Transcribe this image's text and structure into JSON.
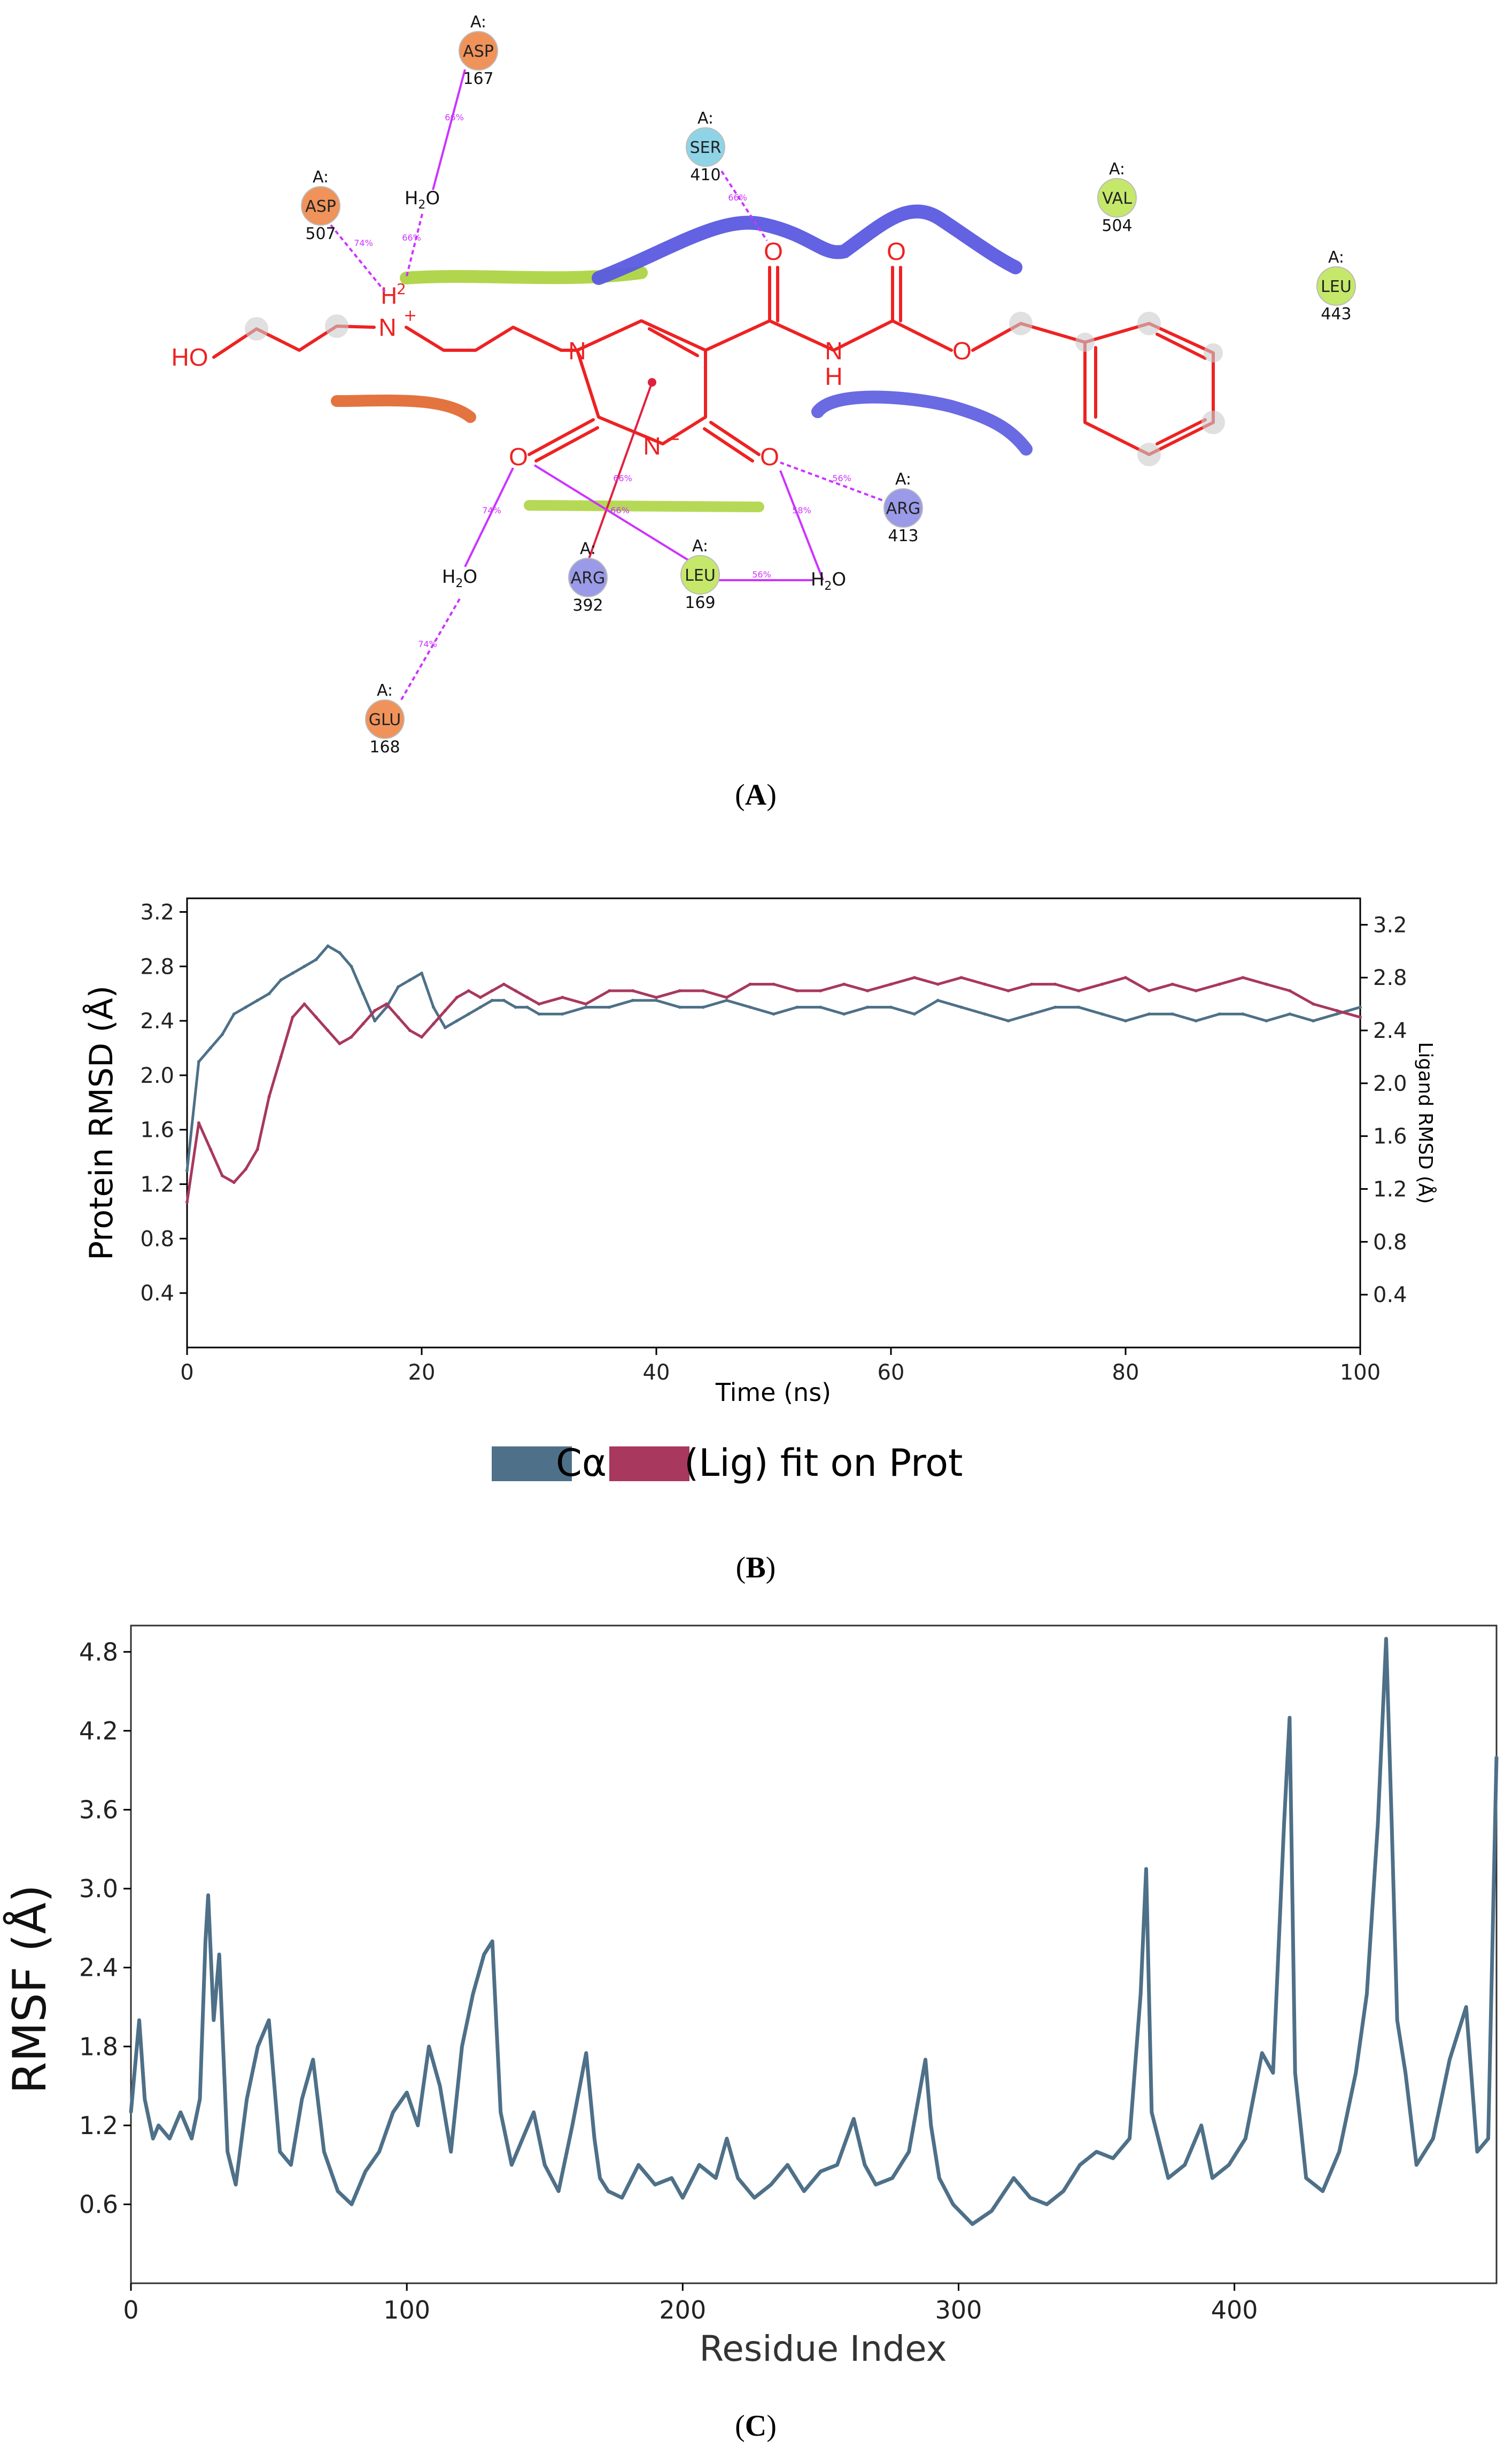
{
  "panel_a": {
    "caption_letter": "A",
    "molecule": {
      "ho": "HO",
      "nplus": "N",
      "plus_sign": "+",
      "h2_label": "H",
      "h2_sub": "2",
      "n_ring": "N",
      "n_minus": "N",
      "minus_sign": "−",
      "o_top_amide": "O",
      "o_top_carb": "O",
      "o_ester": "O",
      "nh_n": "N",
      "nh_h": "H",
      "o_left": "O",
      "o_right": "O"
    },
    "water_label_h": "H",
    "water_label_sub": "2",
    "water_label_o": "O",
    "chain_prefix": "A:",
    "residues": [
      {
        "id": "asp167",
        "name": "ASP",
        "number": "167",
        "color": "#f0935a"
      },
      {
        "id": "asp507",
        "name": "ASP",
        "number": "507",
        "color": "#f0935a"
      },
      {
        "id": "ser410",
        "name": "SER",
        "number": "410",
        "color": "#8fd4e6"
      },
      {
        "id": "val504",
        "name": "VAL",
        "number": "504",
        "color": "#c5e86a"
      },
      {
        "id": "leu443",
        "name": "LEU",
        "number": "443",
        "color": "#c5e86a"
      },
      {
        "id": "arg413",
        "name": "ARG",
        "number": "413",
        "color": "#9a9ae8"
      },
      {
        "id": "arg392",
        "name": "ARG",
        "number": "392",
        "color": "#9a9ae8"
      },
      {
        "id": "leu169",
        "name": "LEU",
        "number": "169",
        "color": "#c5e86a"
      },
      {
        "id": "glu168",
        "name": "GLU",
        "number": "168",
        "color": "#f0935a"
      }
    ],
    "interaction_percents": [
      "66%",
      "66%",
      "74%",
      "66%",
      "74%",
      "74%",
      "66%",
      "56%",
      "58%",
      "56%",
      "66%"
    ]
  },
  "chart_data": [
    {
      "type": "line",
      "panel": "B",
      "caption_letter": "B",
      "xlabel": "Time (ns)",
      "ylabel": "Protein RMSD (Å)",
      "y2label": "Ligand RMSD (Å)",
      "xlim": [
        0,
        100
      ],
      "ylim": [
        0,
        3.3
      ],
      "y2lim": [
        0,
        3.4
      ],
      "xticks": [
        "0",
        "20",
        "40",
        "60",
        "80",
        "100"
      ],
      "yticks": [
        "0.4",
        "0.8",
        "1.2",
        "1.6",
        "2.0",
        "2.4",
        "2.8",
        "3.2"
      ],
      "y2ticks": [
        "0.4",
        "0.8",
        "1.2",
        "1.6",
        "2.0",
        "2.4",
        "2.8",
        "3.2"
      ],
      "legend": {
        "position": "bottom",
        "entries": [
          "Cα",
          "(Lig) fit on Prot"
        ]
      },
      "series": [
        {
          "name": "Cα",
          "color": "#4e7088",
          "axis": "left",
          "x": [
            0,
            1,
            2,
            3,
            4,
            5,
            6,
            7,
            8,
            9,
            10,
            11,
            12,
            13,
            14,
            15,
            16,
            17,
            18,
            19,
            20,
            21,
            22,
            23,
            24,
            25,
            26,
            27,
            28,
            29,
            30,
            32,
            34,
            36,
            38,
            40,
            42,
            44,
            46,
            48,
            50,
            52,
            54,
            56,
            58,
            60,
            62,
            64,
            66,
            68,
            70,
            72,
            74,
            76,
            78,
            80,
            82,
            84,
            86,
            88,
            90,
            92,
            94,
            96,
            98,
            100
          ],
          "values": [
            1.3,
            2.1,
            2.2,
            2.3,
            2.45,
            2.5,
            2.55,
            2.6,
            2.7,
            2.75,
            2.8,
            2.85,
            2.95,
            2.9,
            2.8,
            2.6,
            2.4,
            2.5,
            2.65,
            2.7,
            2.75,
            2.5,
            2.35,
            2.4,
            2.45,
            2.5,
            2.55,
            2.55,
            2.5,
            2.5,
            2.45,
            2.45,
            2.5,
            2.5,
            2.55,
            2.55,
            2.5,
            2.5,
            2.55,
            2.5,
            2.45,
            2.5,
            2.5,
            2.45,
            2.5,
            2.5,
            2.45,
            2.55,
            2.5,
            2.45,
            2.4,
            2.45,
            2.5,
            2.5,
            2.45,
            2.4,
            2.45,
            2.45,
            2.4,
            2.45,
            2.45,
            2.4,
            2.45,
            2.4,
            2.45,
            2.5
          ]
        },
        {
          "name": "(Lig) fit on Prot",
          "color": "#a8385e",
          "axis": "right",
          "x": [
            0,
            1,
            2,
            3,
            4,
            5,
            6,
            7,
            8,
            9,
            10,
            11,
            12,
            13,
            14,
            15,
            16,
            17,
            18,
            19,
            20,
            21,
            22,
            23,
            24,
            25,
            26,
            27,
            28,
            29,
            30,
            32,
            34,
            36,
            38,
            40,
            42,
            44,
            46,
            48,
            50,
            52,
            54,
            56,
            58,
            60,
            62,
            64,
            66,
            68,
            70,
            72,
            74,
            76,
            78,
            80,
            82,
            84,
            86,
            88,
            90,
            92,
            94,
            96,
            98,
            100
          ],
          "values": [
            1.1,
            1.7,
            1.5,
            1.3,
            1.25,
            1.35,
            1.5,
            1.9,
            2.2,
            2.5,
            2.6,
            2.5,
            2.4,
            2.3,
            2.35,
            2.45,
            2.55,
            2.6,
            2.5,
            2.4,
            2.35,
            2.45,
            2.55,
            2.65,
            2.7,
            2.65,
            2.7,
            2.75,
            2.7,
            2.65,
            2.6,
            2.65,
            2.6,
            2.7,
            2.7,
            2.65,
            2.7,
            2.7,
            2.65,
            2.75,
            2.75,
            2.7,
            2.7,
            2.75,
            2.7,
            2.75,
            2.8,
            2.75,
            2.8,
            2.75,
            2.7,
            2.75,
            2.75,
            2.7,
            2.75,
            2.8,
            2.7,
            2.75,
            2.7,
            2.75,
            2.8,
            2.75,
            2.7,
            2.6,
            2.55,
            2.5
          ]
        }
      ]
    },
    {
      "type": "line",
      "panel": "C",
      "caption_letter": "C",
      "xlabel": "Residue Index",
      "ylabel": "RMSF (Å)",
      "xlim": [
        0,
        495
      ],
      "ylim": [
        0,
        5.0
      ],
      "xticks": [
        "0",
        "100",
        "200",
        "300",
        "400"
      ],
      "yticks": [
        "0.6",
        "1.2",
        "1.8",
        "2.4",
        "3.0",
        "3.6",
        "4.2",
        "4.8"
      ],
      "series": [
        {
          "name": "RMSF",
          "color": "#4e7088",
          "x": [
            0,
            3,
            5,
            8,
            10,
            14,
            18,
            22,
            25,
            27,
            28,
            30,
            32,
            35,
            38,
            42,
            46,
            50,
            54,
            58,
            62,
            66,
            70,
            75,
            80,
            85,
            90,
            95,
            100,
            104,
            108,
            112,
            116,
            120,
            124,
            128,
            131,
            134,
            138,
            142,
            146,
            150,
            155,
            160,
            165,
            168,
            170,
            173,
            178,
            184,
            190,
            196,
            200,
            206,
            212,
            216,
            220,
            226,
            232,
            238,
            244,
            250,
            256,
            262,
            266,
            270,
            276,
            282,
            288,
            290,
            293,
            298,
            305,
            312,
            320,
            326,
            332,
            338,
            344,
            350,
            356,
            362,
            366,
            368,
            370,
            376,
            382,
            388,
            392,
            398,
            404,
            410,
            414,
            418,
            420,
            422,
            426,
            432,
            438,
            444,
            448,
            452,
            455,
            457,
            459,
            462,
            466,
            472,
            478,
            484,
            488,
            492,
            495
          ],
          "values": [
            1.3,
            2.0,
            1.4,
            1.1,
            1.2,
            1.1,
            1.3,
            1.1,
            1.4,
            2.6,
            2.95,
            2.0,
            2.5,
            1.0,
            0.75,
            1.4,
            1.8,
            2.0,
            1.0,
            0.9,
            1.4,
            1.7,
            1.0,
            0.7,
            0.6,
            0.85,
            1.0,
            1.3,
            1.45,
            1.2,
            1.8,
            1.5,
            1.0,
            1.8,
            2.2,
            2.5,
            2.6,
            1.3,
            0.9,
            1.1,
            1.3,
            0.9,
            0.7,
            1.2,
            1.75,
            1.1,
            0.8,
            0.7,
            0.65,
            0.9,
            0.75,
            0.8,
            0.65,
            0.9,
            0.8,
            1.1,
            0.8,
            0.65,
            0.75,
            0.9,
            0.7,
            0.85,
            0.9,
            1.25,
            0.9,
            0.75,
            0.8,
            1.0,
            1.7,
            1.2,
            0.8,
            0.6,
            0.45,
            0.55,
            0.8,
            0.65,
            0.6,
            0.7,
            0.9,
            1.0,
            0.95,
            1.1,
            2.2,
            3.15,
            1.3,
            0.8,
            0.9,
            1.2,
            0.8,
            0.9,
            1.1,
            1.75,
            1.6,
            3.5,
            4.3,
            1.6,
            0.8,
            0.7,
            1.0,
            1.6,
            2.2,
            3.5,
            4.9,
            3.5,
            2.0,
            1.6,
            0.9,
            1.1,
            1.7,
            2.1,
            1.0,
            1.1,
            4.0
          ]
        }
      ]
    }
  ]
}
